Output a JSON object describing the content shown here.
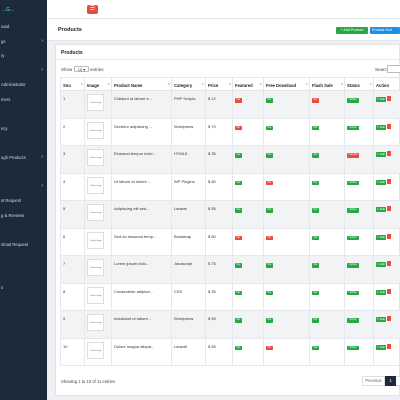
{
  "sidebar": {
    "brand_prefix": "...",
    "brand_accent": "G",
    "brand_suffix": "...",
    "items": [
      {
        "label": "oard",
        "has_submenu": false
      },
      {
        "label": "gs",
        "has_submenu": true
      },
      {
        "label": "ry",
        "has_submenu": false
      },
      {
        "label": "",
        "has_submenu": true
      },
      {
        "label": "Administrator",
        "has_submenu": false
      },
      {
        "label": "mers",
        "has_submenu": false
      },
      {
        "label": "",
        "has_submenu": false
      },
      {
        "label": "ncy",
        "has_submenu": false
      },
      {
        "label": "",
        "has_submenu": false
      },
      {
        "label": "ugh Products",
        "has_submenu": true
      },
      {
        "label": "",
        "has_submenu": false
      },
      {
        "label": "",
        "has_submenu": true
      },
      {
        "label": "st Request",
        "has_submenu": false
      },
      {
        "label": "g & Reviews",
        "has_submenu": false
      },
      {
        "label": "",
        "has_submenu": false
      },
      {
        "label": "nload Request",
        "has_submenu": false
      },
      {
        "label": "",
        "has_submenu": false
      },
      {
        "label": "",
        "has_submenu": false
      },
      {
        "label": "s",
        "has_submenu": false
      },
      {
        "label": "",
        "has_submenu": false
      },
      {
        "label": "",
        "has_submenu": false
      }
    ]
  },
  "topbar": {
    "menu_icon": "menu-icon"
  },
  "page": {
    "title": "Products",
    "add_button": "+ Add Product",
    "sort_button": "Product Sort"
  },
  "card": {
    "title": "Products"
  },
  "controls": {
    "show_label": "Show",
    "entries_value": "10",
    "entries_label": "entries",
    "search_label": "Search:"
  },
  "table": {
    "columns": [
      "Sno",
      "Image",
      "Product Name",
      "Category",
      "Price",
      "Featured",
      "Free Download",
      "Flash Sale",
      "Status",
      "Action"
    ],
    "image_caption": "Product Image",
    "edit_label": "Edit",
    "rows": [
      {
        "sno": "1",
        "name": "Cididunt ut labore e...",
        "category": "PHP Scripts",
        "price": "$ 12",
        "featured": "No",
        "free_download": "Yes",
        "flash_sale": "No",
        "status": "Active"
      },
      {
        "sno": "2",
        "name": "Sectetur adipiscing ...",
        "category": "Wordpress",
        "price": "$ 70",
        "featured": "No",
        "free_download": "Yes",
        "flash_sale": "Yes",
        "status": "Active"
      },
      {
        "sno": "3",
        "name": "Eiusmod tempor incid...",
        "category": "HTML5",
        "price": "$ 35",
        "featured": "Yes",
        "free_download": "Yes",
        "flash_sale": "Yes",
        "status": "InActive"
      },
      {
        "sno": "4",
        "name": "Ut labore et dolore ...",
        "category": "WP Plugins",
        "price": "$ 80",
        "featured": "Yes",
        "free_download": "No",
        "flash_sale": "Yes",
        "status": "Active"
      },
      {
        "sno": "5",
        "name": "Adipiscing elit sed...",
        "category": "Laravel",
        "price": "$ 55",
        "featured": "Yes",
        "free_download": "Yes",
        "flash_sale": "Yes",
        "status": "Active"
      },
      {
        "sno": "6",
        "name": "Sed do eiusmod temp...",
        "category": "Bootstrap",
        "price": "$ 60",
        "featured": "No",
        "free_download": "No",
        "flash_sale": "Yes",
        "status": "Active"
      },
      {
        "sno": "7",
        "name": "Lorem ipsum dolo...",
        "category": "Javascript",
        "price": "$ 75",
        "featured": "Yes",
        "free_download": "Yes",
        "flash_sale": "Yes",
        "status": "Active"
      },
      {
        "sno": "8",
        "name": "Consectetur adipisci...",
        "category": "CSS",
        "price": "$ 35",
        "featured": "Yes",
        "free_download": "Yes",
        "flash_sale": "Yes",
        "status": "Active"
      },
      {
        "sno": "9",
        "name": "Incididunt ut labore...",
        "category": "Wordpress",
        "price": "$ 55",
        "featured": "Yes",
        "free_download": "Yes",
        "flash_sale": "Yes",
        "status": "Active"
      },
      {
        "sno": "10",
        "name": "Dolore magna aliqua...",
        "category": "Laravel",
        "price": "$ 55",
        "featured": "Yes",
        "free_download": "No",
        "flash_sale": "Yes",
        "status": "Active"
      }
    ]
  },
  "footer": {
    "info": "Showing 1 to 10 of 11 entries",
    "prev_label": "Previous",
    "current_page": "1"
  },
  "colors": {
    "sidebar_bg": "#1c2b3a",
    "success": "#28a745",
    "danger": "#e74c3c",
    "primary": "#1f8fe5"
  }
}
